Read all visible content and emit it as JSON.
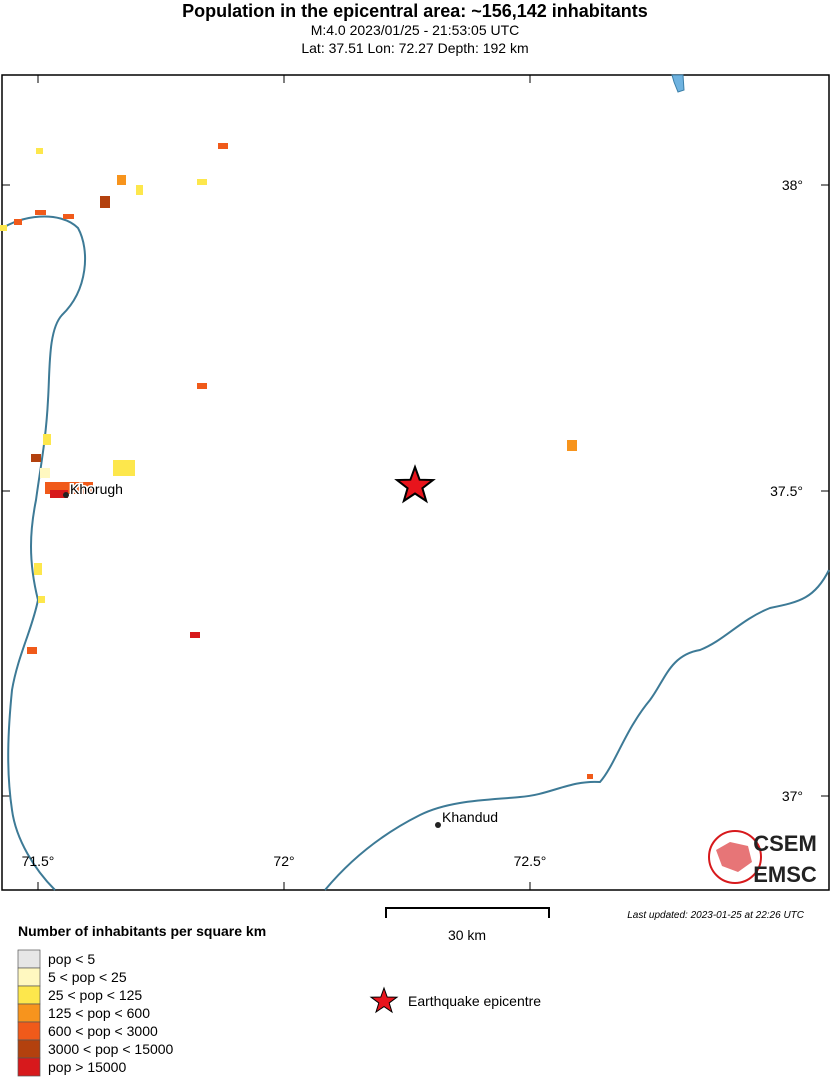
{
  "header": {
    "title": "Population in the epicentral area: ~156,142 inhabitants",
    "subtitle": "M:4.0 2023/01/25 - 21:53:05 UTC",
    "location": "Lat: 37.51 Lon: 72.27 Depth: 192 km"
  },
  "map": {
    "lon_ticks": [
      "71.5°",
      "72°",
      "72.5°"
    ],
    "lat_ticks": [
      "38°",
      "37.5°",
      "37°"
    ],
    "places": [
      "Khorugh",
      "Khandud"
    ],
    "scale": "30 km",
    "updated": "Last updated: 2023-01-25 at 22:26 UTC",
    "logo": [
      "CSEM",
      "EMSC"
    ]
  },
  "legend": {
    "title": "Number of inhabitants per square km",
    "classes": [
      {
        "label": "pop < 5",
        "color": "#e6e6e6"
      },
      {
        "label": "5 < pop < 25",
        "color": "#fff8c0"
      },
      {
        "label": "25 < pop < 125",
        "color": "#fde74c"
      },
      {
        "label": "125 < pop < 600",
        "color": "#f7941d"
      },
      {
        "label": "600 < pop < 3000",
        "color": "#f05a1a"
      },
      {
        "label": "3000 < pop < 15000",
        "color": "#b3410e"
      },
      {
        "label": "pop > 15000",
        "color": "#d7191c"
      }
    ],
    "epicentre": "Earthquake epicentre"
  }
}
